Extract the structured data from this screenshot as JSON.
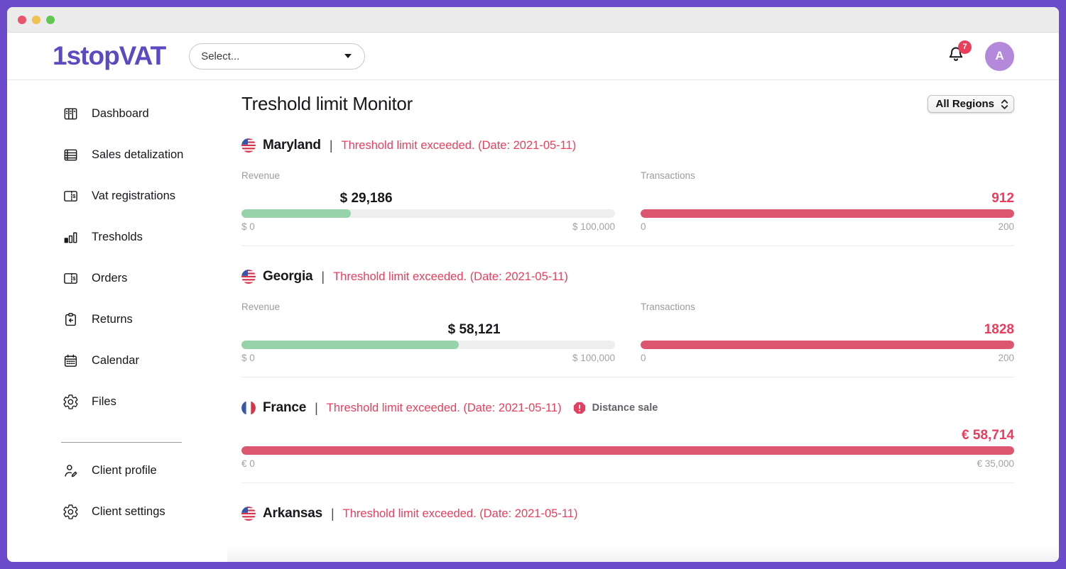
{
  "window": {
    "traffic_lights": [
      "close",
      "minimize",
      "zoom"
    ]
  },
  "header": {
    "logo_text": "1stopVAT",
    "select_placeholder": "Select...",
    "notification_badge": "7",
    "avatar_initial": "A"
  },
  "sidebar": {
    "items": [
      {
        "label": "Dashboard",
        "icon": "dashboard-icon"
      },
      {
        "label": "Sales detalization",
        "icon": "list-icon"
      },
      {
        "label": "Vat registrations",
        "icon": "card-dollar-icon"
      },
      {
        "label": "Tresholds",
        "icon": "bar-chart-icon"
      },
      {
        "label": "Orders",
        "icon": "card-dollar-icon"
      },
      {
        "label": "Returns",
        "icon": "clipboard-return-icon"
      },
      {
        "label": "Calendar",
        "icon": "calendar-icon"
      },
      {
        "label": "Files",
        "icon": "gear-icon"
      }
    ],
    "footer_items": [
      {
        "label": "Client profile",
        "icon": "user-edit-icon"
      },
      {
        "label": "Client settings",
        "icon": "gear-icon"
      }
    ]
  },
  "main": {
    "title": "Treshold limit Monitor",
    "region_filter": {
      "selected": "All Regions"
    },
    "sections": [
      {
        "name": "Maryland",
        "flag": "us",
        "separator": "|",
        "status": "Threshold limit exceeded. (Date: 2021-05-11)",
        "metrics": [
          {
            "label": "Revenue",
            "value": "$ 29,186",
            "min": "$ 0",
            "max": "$ 100,000",
            "fill_pct": 29.2,
            "color": "green"
          },
          {
            "label": "Transactions",
            "value": "912",
            "min": "0",
            "max": "200",
            "fill_pct": 100,
            "color": "red"
          }
        ]
      },
      {
        "name": "Georgia",
        "flag": "us",
        "separator": "|",
        "status": "Threshold limit exceeded. (Date: 2021-05-11)",
        "metrics": [
          {
            "label": "Revenue",
            "value": "$ 58,121",
            "min": "$ 0",
            "max": "$ 100,000",
            "fill_pct": 58.1,
            "color": "green"
          },
          {
            "label": "Transactions",
            "value": "1828",
            "min": "0",
            "max": "200",
            "fill_pct": 100,
            "color": "red"
          }
        ]
      },
      {
        "name": "France",
        "flag": "fr",
        "separator": "|",
        "status": "Threshold limit exceeded. (Date: 2021-05-11)",
        "badge": "Distance sale",
        "metrics": [
          {
            "label": "",
            "value": "€ 58,714",
            "min": "€ 0",
            "max": "€ 35,000",
            "fill_pct": 100,
            "color": "red"
          }
        ]
      },
      {
        "name": "Arkansas",
        "flag": "us",
        "separator": "|",
        "status": "Threshold limit exceeded. (Date: 2021-05-11)"
      }
    ]
  },
  "colors": {
    "frame_purple": "#6B4BC9",
    "logo_purple": "#5C4BC0",
    "avatar_purple": "#B488DB",
    "status_red_text": "#EE3D5C",
    "bar_red": "#DC5670",
    "bar_green": "#97D3A8",
    "bar_track": "#EEEEEF",
    "badge_red": "#EA3E5A",
    "muted_gray": "#9B9BA1"
  }
}
